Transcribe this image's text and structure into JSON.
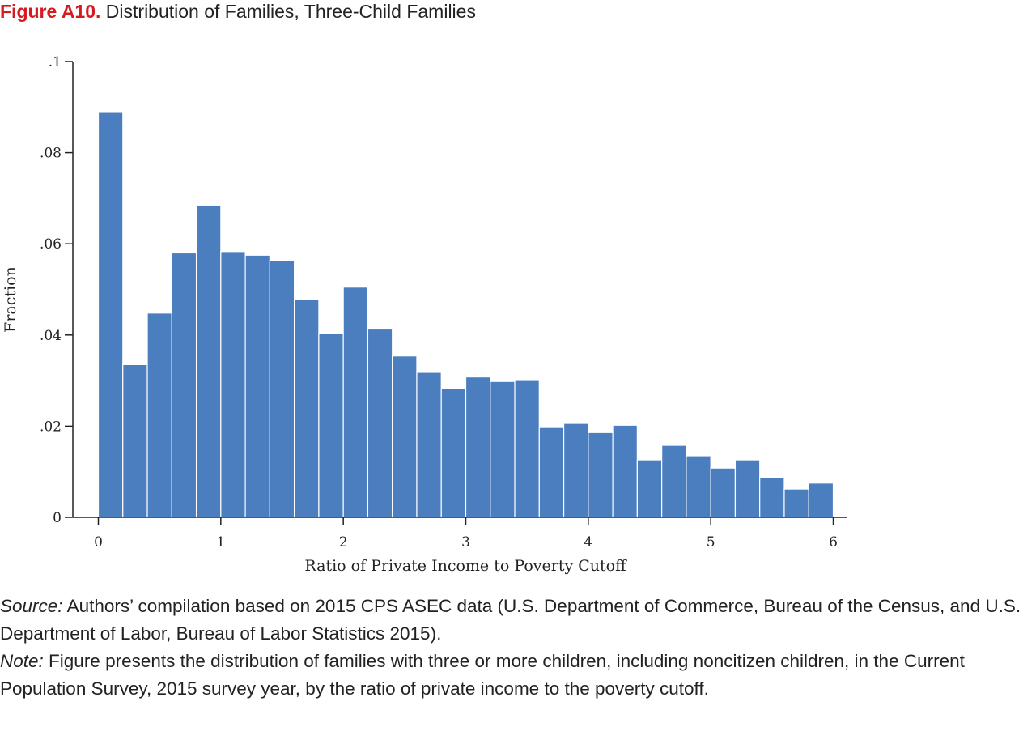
{
  "title": {
    "label": "Figure A10.",
    "text": "Distribution of Families, Three-Child Families"
  },
  "source": {
    "label": "Source:",
    "text": "Authors’ compilation based on 2015 CPS ASEC data (U.S. Department of Commerce, Bureau of the Census, and U.S. Department of Labor, Bureau of Labor Statistics 2015)."
  },
  "note": {
    "label": "Note:",
    "text": "Figure presents the distribution of families with three or more children, including noncitizen children, in the Current Population Survey, 2015 survey year, by the ratio of private income to the poverty cutoff."
  },
  "colors": {
    "bar": "#4a7ebf",
    "title_label": "#d71920",
    "text": "#222222"
  },
  "chart_data": {
    "type": "bar",
    "title": "",
    "xlabel": "Ratio of Private Income to Poverty Cutoff",
    "ylabel": "Fraction",
    "xlim": [
      0,
      6
    ],
    "ylim": [
      0,
      0.1
    ],
    "x_ticks": [
      0,
      1,
      2,
      3,
      4,
      5,
      6
    ],
    "x_tick_labels": [
      "0",
      "1",
      "2",
      "3",
      "4",
      "5",
      "6"
    ],
    "y_ticks": [
      0,
      0.02,
      0.04,
      0.06,
      0.08,
      0.1
    ],
    "y_tick_labels": [
      "0",
      ".02",
      ".04",
      ".06",
      ".08",
      ".1"
    ],
    "bin_width": 0.2,
    "bin_starts": [
      0,
      0.2,
      0.4,
      0.6,
      0.8,
      1.0,
      1.2,
      1.4,
      1.6,
      1.8,
      2.0,
      2.2,
      2.4,
      2.6,
      2.8,
      3.0,
      3.2,
      3.4,
      3.6,
      3.8,
      4.0,
      4.2,
      4.4,
      4.6,
      4.8,
      5.0,
      5.2,
      5.4,
      5.6,
      5.8
    ],
    "values": [
      0.089,
      0.0335,
      0.0448,
      0.058,
      0.0685,
      0.0583,
      0.0575,
      0.0563,
      0.0478,
      0.0404,
      0.0505,
      0.0413,
      0.0354,
      0.0318,
      0.0282,
      0.0308,
      0.0298,
      0.0302,
      0.0197,
      0.0206,
      0.0186,
      0.0202,
      0.0126,
      0.0158,
      0.0135,
      0.0108,
      0.0126,
      0.0088,
      0.0062,
      0.0075
    ],
    "grid": false,
    "legend": "none"
  }
}
